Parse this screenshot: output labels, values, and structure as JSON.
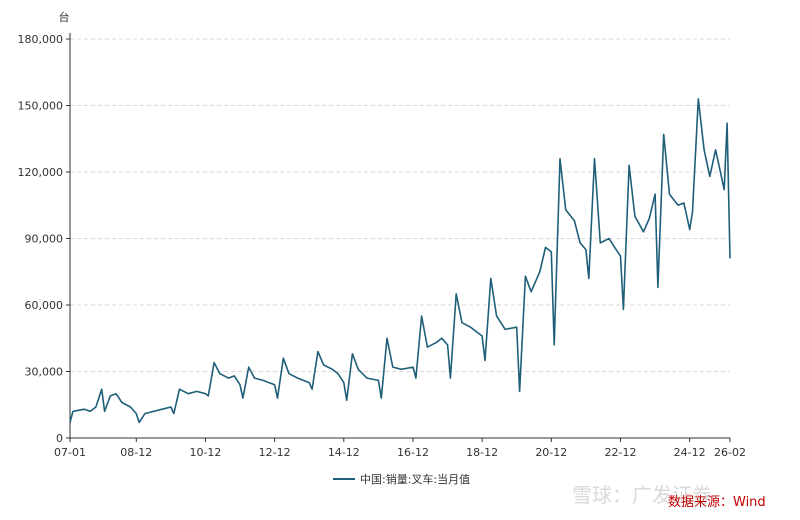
{
  "chart_data": {
    "type": "line",
    "unit": "台",
    "series": [
      {
        "name": "中国:销量:叉车:当月值",
        "color": "#1f5f7a",
        "points": [
          [
            "07-01",
            7000
          ],
          [
            "07-02",
            12000
          ],
          [
            "07-04",
            12500
          ],
          [
            "07-06",
            13000
          ],
          [
            "07-08",
            12000
          ],
          [
            "07-10",
            14000
          ],
          [
            "07-12",
            22000
          ],
          [
            "08-01",
            12000
          ],
          [
            "08-03",
            19000
          ],
          [
            "08-05",
            20000
          ],
          [
            "08-07",
            16000
          ],
          [
            "08-10",
            14000
          ],
          [
            "08-12",
            11000
          ],
          [
            "09-01",
            7000
          ],
          [
            "09-03",
            11000
          ],
          [
            "09-06",
            12000
          ],
          [
            "09-09",
            13000
          ],
          [
            "09-12",
            14000
          ],
          [
            "10-01",
            11000
          ],
          [
            "10-03",
            22000
          ],
          [
            "10-06",
            20000
          ],
          [
            "10-09",
            21000
          ],
          [
            "10-12",
            20000
          ],
          [
            "11-01",
            19000
          ],
          [
            "11-03",
            34000
          ],
          [
            "11-05",
            29000
          ],
          [
            "11-08",
            27000
          ],
          [
            "11-10",
            28000
          ],
          [
            "11-12",
            24000
          ],
          [
            "12-01",
            18000
          ],
          [
            "12-03",
            32000
          ],
          [
            "12-05",
            27000
          ],
          [
            "12-08",
            26000
          ],
          [
            "12-12",
            24000
          ],
          [
            "13-01",
            18000
          ],
          [
            "13-03",
            36000
          ],
          [
            "13-05",
            29000
          ],
          [
            "13-08",
            27000
          ],
          [
            "13-10",
            26000
          ],
          [
            "13-12",
            25000
          ],
          [
            "14-01",
            22000
          ],
          [
            "14-03",
            39000
          ],
          [
            "14-05",
            33000
          ],
          [
            "14-08",
            31000
          ],
          [
            "14-10",
            29000
          ],
          [
            "14-12",
            25000
          ],
          [
            "15-01",
            17000
          ],
          [
            "15-03",
            38000
          ],
          [
            "15-05",
            31000
          ],
          [
            "15-08",
            27000
          ],
          [
            "15-12",
            26000
          ],
          [
            "16-01",
            18000
          ],
          [
            "16-03",
            45000
          ],
          [
            "16-05",
            32000
          ],
          [
            "16-08",
            31000
          ],
          [
            "16-12",
            32000
          ],
          [
            "17-01",
            27000
          ],
          [
            "17-03",
            55000
          ],
          [
            "17-05",
            41000
          ],
          [
            "17-08",
            43000
          ],
          [
            "17-10",
            45000
          ],
          [
            "17-12",
            42000
          ],
          [
            "18-01",
            27000
          ],
          [
            "18-03",
            65000
          ],
          [
            "18-05",
            52000
          ],
          [
            "18-08",
            50000
          ],
          [
            "18-12",
            46000
          ],
          [
            "19-01",
            35000
          ],
          [
            "19-03",
            72000
          ],
          [
            "19-05",
            55000
          ],
          [
            "19-08",
            49000
          ],
          [
            "19-12",
            50000
          ],
          [
            "20-01",
            21000
          ],
          [
            "20-03",
            73000
          ],
          [
            "20-05",
            66000
          ],
          [
            "20-08",
            75000
          ],
          [
            "20-10",
            86000
          ],
          [
            "20-12",
            84000
          ],
          [
            "21-01",
            42000
          ],
          [
            "21-03",
            126000
          ],
          [
            "21-05",
            103000
          ],
          [
            "21-08",
            98000
          ],
          [
            "21-10",
            88000
          ],
          [
            "21-12",
            85000
          ],
          [
            "22-01",
            72000
          ],
          [
            "22-03",
            126000
          ],
          [
            "22-05",
            88000
          ],
          [
            "22-08",
            90000
          ],
          [
            "22-10",
            86000
          ],
          [
            "22-12",
            82000
          ],
          [
            "23-01",
            58000
          ],
          [
            "23-03",
            123000
          ],
          [
            "23-05",
            100000
          ],
          [
            "23-08",
            93000
          ],
          [
            "23-10",
            99000
          ],
          [
            "23-12",
            110000
          ],
          [
            "24-01",
            68000
          ],
          [
            "24-03",
            137000
          ],
          [
            "24-05",
            110000
          ],
          [
            "24-08",
            105000
          ],
          [
            "24-10",
            106000
          ],
          [
            "24-12",
            94000
          ],
          [
            "25-01",
            102000
          ],
          [
            "25-03",
            153000
          ],
          [
            "25-05",
            130000
          ],
          [
            "25-07",
            118000
          ],
          [
            "25-09",
            130000
          ],
          [
            "25-11",
            118000
          ],
          [
            "25-12",
            112000
          ],
          [
            "26-01",
            142000
          ],
          [
            "26-02",
            81000
          ]
        ]
      }
    ],
    "x_ticks": [
      "07-01",
      "08-12",
      "10-12",
      "12-12",
      "14-12",
      "16-12",
      "18-12",
      "20-12",
      "22-12",
      "24-12",
      "26-02"
    ],
    "y_ticks": [
      "0",
      "30,000",
      "60,000",
      "90,000",
      "120,000",
      "150,000",
      "180,000"
    ],
    "ylim": [
      0,
      180000
    ],
    "grid": "horizontal-dashed",
    "legend_position": "bottom-center"
  },
  "footer": {
    "source": "数据来源：Wind",
    "watermark": "雪球：广发证券"
  }
}
